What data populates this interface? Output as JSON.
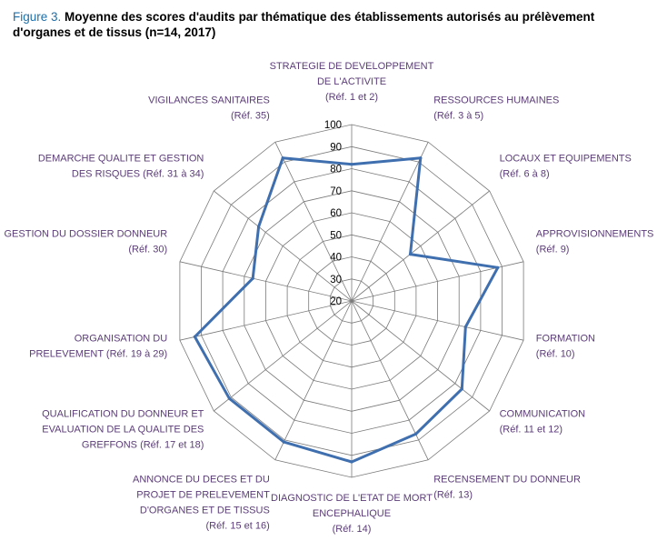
{
  "title": {
    "figure_label": "Figure 3.",
    "text": "Moyenne des scores d'audits par thématique des établissements autorisés au prélèvement d'organes et de tissus (n=14, 2017)"
  },
  "chart_data": {
    "type": "radar",
    "title": "Figure 3. Moyenne des scores d'audits par thématique des établissements autorisés au prélèvement d'organes et de tissus (n=14, 2017)",
    "rlim": [
      20,
      100
    ],
    "ticks": [
      20,
      30,
      40,
      50,
      60,
      70,
      80,
      90,
      100
    ],
    "tick_labels": [
      "20",
      "30",
      "40",
      "50",
      "60",
      "70",
      "80",
      "90",
      "100"
    ],
    "grid": true,
    "series_color": "#3f6fae",
    "categories": [
      [
        "STRATEGIE DE DEVELOPPEMENT",
        "DE L'ACTIVITE",
        "(Réf. 1 et 2)"
      ],
      [
        "RESSOURCES HUMAINES",
        "(Réf. 3 à 5)"
      ],
      [
        "LOCAUX ET EQUIPEMENTS",
        "(Réf. 6 à 8)"
      ],
      [
        "APPROVISIONNEMENTS",
        "(Réf. 9)"
      ],
      [
        "FORMATION",
        "(Réf. 10)"
      ],
      [
        "COMMUNICATION",
        "(Réf. 11 et 12)"
      ],
      [
        "RECENSEMENT DU DONNEUR",
        "(Réf. 13)"
      ],
      [
        "DIAGNOSTIC DE L'ETAT DE MORT",
        "ENCEPHALIQUE",
        "(Réf. 14)"
      ],
      [
        "ANNONCE DU DECES ET DU",
        "PROJET DE PRELEVEMENT",
        "D'ORGANES ET DE TISSUS",
        "(Réf. 15 et 16)"
      ],
      [
        "QUALIFICATION DU DONNEUR ET",
        "EVALUATION DE LA QUALITE DES",
        "GREFFONS (Réf. 17 et 18)"
      ],
      [
        "ORGANISATION DU",
        "PRELEVEMENT (Réf. 19 à 29)"
      ],
      [
        "GESTION DU DOSSIER DONNEUR",
        "(Réf. 30)"
      ],
      [
        "DEMARCHE QUALITE ET GESTION",
        "DES RISQUES (Réf. 31 à 34)"
      ],
      [
        "VIGILANCES SANITAIRES",
        "(Réf. 35)"
      ]
    ],
    "series": [
      {
        "values": [
          82,
          92,
          54,
          88,
          73,
          84,
          87,
          93,
          91,
          91,
          93,
          66,
          74,
          92
        ]
      }
    ]
  }
}
